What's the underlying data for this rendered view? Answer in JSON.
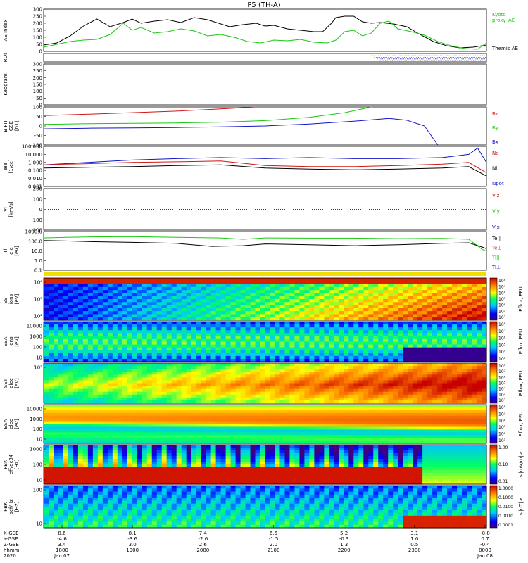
{
  "title": "P5 (TH-A)",
  "colors": {
    "black": "#000000",
    "green": "#19c80f",
    "red": "#d21414",
    "blue": "#1414c8"
  },
  "chart_data": [
    {
      "type": "line",
      "name": "ae",
      "ylabel": "AE Index",
      "ylim": [
        0,
        300
      ],
      "yticks": [
        "300",
        "250",
        "200",
        "150",
        "100",
        "50",
        "0"
      ],
      "legend": [
        {
          "label": "Kyoto proxy_AE",
          "line1": "Kyoto",
          "line2": "proxy_AE",
          "color": "#19c80f"
        },
        {
          "label": "Themis AE",
          "color": "#000000"
        }
      ],
      "series": [
        {
          "name": "Themis AE",
          "color": "#000000",
          "x": [
            0,
            0.03,
            0.06,
            0.09,
            0.12,
            0.15,
            0.18,
            0.2,
            0.22,
            0.25,
            0.28,
            0.31,
            0.34,
            0.37,
            0.39,
            0.42,
            0.45,
            0.48,
            0.5,
            0.52,
            0.55,
            0.58,
            0.61,
            0.63,
            0.65,
            0.66,
            0.68,
            0.7,
            0.72,
            0.74,
            0.76,
            0.79,
            0.82,
            0.85,
            0.88,
            0.91,
            0.94,
            0.97,
            1.0
          ],
          "y": [
            45,
            60,
            110,
            180,
            230,
            175,
            205,
            230,
            200,
            215,
            225,
            205,
            240,
            225,
            205,
            175,
            190,
            200,
            180,
            185,
            160,
            150,
            140,
            140,
            200,
            240,
            250,
            250,
            210,
            200,
            205,
            195,
            175,
            120,
            70,
            40,
            25,
            30,
            45
          ]
        },
        {
          "name": "Kyoto proxy_AE",
          "color": "#19c80f",
          "x": [
            0,
            0.03,
            0.06,
            0.09,
            0.12,
            0.15,
            0.18,
            0.2,
            0.22,
            0.25,
            0.28,
            0.31,
            0.34,
            0.37,
            0.4,
            0.43,
            0.46,
            0.49,
            0.52,
            0.55,
            0.58,
            0.61,
            0.64,
            0.66,
            0.68,
            0.7,
            0.72,
            0.74,
            0.76,
            0.78,
            0.8,
            0.83,
            0.86,
            0.89,
            0.92,
            0.95,
            0.98,
            1.0
          ],
          "y": [
            30,
            50,
            70,
            80,
            85,
            120,
            200,
            150,
            170,
            130,
            140,
            160,
            145,
            110,
            120,
            100,
            70,
            60,
            80,
            75,
            85,
            65,
            60,
            80,
            140,
            150,
            110,
            130,
            200,
            215,
            160,
            140,
            115,
            70,
            40,
            20,
            15,
            60
          ]
        }
      ]
    },
    {
      "type": "scatter",
      "name": "roi",
      "ylabel": "ROI"
    },
    {
      "type": "line",
      "name": "keogram",
      "ylabel": "Keogram",
      "ylim": [
        0,
        300
      ],
      "yticks": [
        "300",
        "250",
        "200",
        "150",
        "100",
        "50",
        "0"
      ]
    },
    {
      "type": "line",
      "name": "bfield",
      "ylabel": "B FIT",
      "ylabel2": "GSE",
      "ylabel3": "[nT]",
      "ylim": [
        -100,
        100
      ],
      "yticks": [
        "100",
        "50",
        "0",
        "-50",
        "-100"
      ],
      "legend": [
        {
          "label": "Bz",
          "color": "#d21414"
        },
        {
          "label": "By",
          "color": "#19c80f"
        },
        {
          "label": "Bx",
          "color": "#1414c8"
        }
      ],
      "series": [
        {
          "name": "Bz",
          "color": "#d21414",
          "x": [
            0,
            0.1,
            0.2,
            0.3,
            0.4,
            0.48
          ],
          "y": [
            55,
            62,
            70,
            78,
            90,
            100
          ]
        },
        {
          "name": "By",
          "color": "#19c80f",
          "x": [
            0,
            0.1,
            0.2,
            0.3,
            0.4,
            0.5,
            0.6,
            0.68,
            0.74
          ],
          "y": [
            8,
            12,
            14,
            16,
            20,
            28,
            45,
            70,
            100
          ]
        },
        {
          "name": "Bx",
          "color": "#1414c8",
          "x": [
            0,
            0.1,
            0.2,
            0.3,
            0.4,
            0.5,
            0.6,
            0.7,
            0.78,
            0.82,
            0.86,
            0.89
          ],
          "y": [
            -15,
            -12,
            -10,
            -8,
            -5,
            0,
            10,
            25,
            40,
            30,
            0,
            -100
          ]
        }
      ]
    },
    {
      "type": "line",
      "name": "density",
      "ylabel": "eIe",
      "ylabel2": "[1/cc]",
      "ylim": [
        0.001,
        100
      ],
      "yscale": "log",
      "yticks": [
        "100.000",
        "10.000",
        "1.000",
        "0.100",
        "0.010",
        "0.001"
      ],
      "legend": [
        {
          "label": "Ne",
          "color": "#d21414"
        },
        {
          "label": "Ni",
          "color": "#000000"
        },
        {
          "label": "Npot",
          "color": "#1414c8"
        }
      ],
      "series": [
        {
          "name": "Npot",
          "color": "#1414c8",
          "x": [
            0,
            0.1,
            0.2,
            0.3,
            0.4,
            0.5,
            0.6,
            0.7,
            0.8,
            0.9,
            0.96,
            0.98,
            1.0
          ],
          "y": [
            0.5,
            1.0,
            2.0,
            3.0,
            4.0,
            3.0,
            4.0,
            3.0,
            3.0,
            4.0,
            10.0,
            60.0,
            1.0
          ]
        },
        {
          "name": "Ne",
          "color": "#d21414",
          "x": [
            0,
            0.05,
            0.1,
            0.2,
            0.3,
            0.4,
            0.5,
            0.6,
            0.7,
            0.8,
            0.9,
            0.96,
            1.0
          ],
          "y": [
            0.5,
            0.6,
            0.7,
            1.0,
            1.2,
            1.5,
            0.4,
            0.3,
            0.3,
            0.4,
            0.6,
            1.0,
            0.05
          ]
        },
        {
          "name": "Ni",
          "color": "#000000",
          "x": [
            0,
            0.1,
            0.2,
            0.3,
            0.4,
            0.5,
            0.6,
            0.7,
            0.8,
            0.9,
            0.96,
            1.0
          ],
          "y": [
            0.2,
            0.25,
            0.3,
            0.4,
            0.5,
            0.2,
            0.15,
            0.12,
            0.15,
            0.2,
            0.3,
            0.02
          ]
        }
      ]
    },
    {
      "type": "line",
      "name": "velocity",
      "ylabel": "Vi",
      "ylabel2": "[km/s]",
      "ylim": [
        -250,
        250
      ],
      "yticks": [
        "200",
        "100",
        "0",
        "-100",
        "-200"
      ],
      "legend": [
        {
          "label": "Viz",
          "color": "#d21414"
        },
        {
          "label": "Viy",
          "color": "#19c80f"
        },
        {
          "label": "Vix",
          "color": "#1414c8"
        }
      ]
    },
    {
      "type": "line",
      "name": "temperature",
      "ylabel": "Ti",
      "ylabel2": "eIe",
      "ylabel3": "[eV]",
      "ylim": [
        0.1,
        10000
      ],
      "yscale": "log",
      "yticks": [
        "1000.0",
        "100.0",
        "10.0",
        "1.0",
        "0.1"
      ],
      "legend": [
        {
          "label": "Te||",
          "color": "#000000"
        },
        {
          "label": "Te⊥",
          "color": "#d21414"
        },
        {
          "label": "Ti||",
          "color": "#19c80f"
        },
        {
          "label": "Ti⊥",
          "color": "#1414c8"
        }
      ],
      "series": [
        {
          "name": "Ti||",
          "color": "#19c80f",
          "x": [
            0,
            0.05,
            0.1,
            0.2,
            0.3,
            0.4,
            0.45,
            0.5,
            0.6,
            0.7,
            0.8,
            0.9,
            0.96,
            0.99,
            1.0
          ],
          "y": [
            1500,
            1800,
            2000,
            2200,
            1800,
            1500,
            1000,
            1500,
            1400,
            1400,
            1200,
            1300,
            1000,
            50,
            30
          ]
        },
        {
          "name": "Te||",
          "color": "#000000",
          "x": [
            0,
            0.05,
            0.1,
            0.2,
            0.3,
            0.38,
            0.45,
            0.5,
            0.6,
            0.7,
            0.8,
            0.9,
            0.96,
            0.99,
            1.0
          ],
          "y": [
            700,
            600,
            500,
            400,
            300,
            120,
            150,
            250,
            200,
            150,
            200,
            300,
            350,
            100,
            60
          ]
        }
      ]
    },
    {
      "type": "heatmap",
      "name": "sst_ions",
      "ylabel": "SST",
      "ylabel2": "ions",
      "ylabel3": "[eV]",
      "yticks": [
        "10⁴",
        "10³",
        "10²"
      ],
      "zlabel": "Eflux, EFU",
      "zticks": [
        "10⁸",
        "10⁷",
        "10⁶",
        "10⁵",
        "10⁴",
        "10³",
        "10²"
      ]
    },
    {
      "type": "heatmap",
      "name": "esa_ions",
      "ylabel": "ESA",
      "ylabel2": "ions",
      "ylabel3": "[eV]",
      "yticks": [
        "10000",
        "1000",
        "100",
        "10"
      ],
      "zlabel": "Eflux, EFU",
      "zticks": [
        "10⁸",
        "10⁷",
        "10⁶",
        "10⁵",
        "10⁴",
        "10³"
      ]
    },
    {
      "type": "heatmap",
      "name": "sst_elec",
      "ylabel": "SST",
      "ylabel2": "elec",
      "ylabel3": "[eV]",
      "yticks": [
        "10⁵"
      ],
      "zlabel": "Eflux, EFU",
      "zticks": [
        "10⁸",
        "10⁷",
        "10⁶",
        "10⁵",
        "10⁴",
        "10³",
        "10²"
      ]
    },
    {
      "type": "heatmap",
      "name": "esa_elec",
      "ylabel": "ESA",
      "ylabel2": "elec",
      "ylabel3": "[eV]",
      "yticks": [
        "10000",
        "1000",
        "100",
        "10"
      ],
      "zlabel": "Eflux, EFU",
      "zticks": [
        "10⁸",
        "10⁷",
        "10⁶",
        "10⁵",
        "10⁴",
        "10³"
      ]
    },
    {
      "type": "heatmap",
      "name": "fbk_efi",
      "ylabel": "FBK",
      "ylabel2": "eff/dc34",
      "ylabel3": "[Hz]",
      "yticks": [
        "1000",
        "100",
        "10"
      ],
      "zlabel": "<|mV/m|>",
      "zticks": [
        "1.00",
        "0.10",
        "0.01"
      ]
    },
    {
      "type": "heatmap",
      "name": "fbk_scm",
      "ylabel": "FBK",
      "ylabel2": "scf/Hz",
      "ylabel3": "[Hz]",
      "yticks": [
        "100",
        "10"
      ],
      "zlabel": "<|nT|>",
      "zticks": [
        "1.0000",
        "0.1000",
        "0.0100",
        "0.0010",
        "0.0001"
      ]
    }
  ],
  "xaxis": {
    "row_labels": [
      "X-GSE",
      "Y-GSE",
      "Z-GSE",
      "hhmm",
      "2020"
    ],
    "columns": [
      {
        "vals": [
          "8.6",
          "-4.6",
          "3.4",
          "1800",
          "Jan 07"
        ]
      },
      {
        "vals": [
          "8.1",
          "-3.6",
          "3.0",
          "1900",
          ""
        ]
      },
      {
        "vals": [
          "7.4",
          "-2.6",
          "2.6",
          "2000",
          ""
        ]
      },
      {
        "vals": [
          "6.5",
          "-1.5",
          "2.0",
          "2100",
          ""
        ]
      },
      {
        "vals": [
          "5.2",
          "-0.3",
          "1.3",
          "2200",
          ""
        ]
      },
      {
        "vals": [
          "3.1",
          "1.0",
          "0.5",
          "2300",
          ""
        ]
      },
      {
        "vals": [
          "-0.8",
          "0.7",
          "-0.4",
          "0000",
          "Jan 08"
        ]
      }
    ]
  }
}
